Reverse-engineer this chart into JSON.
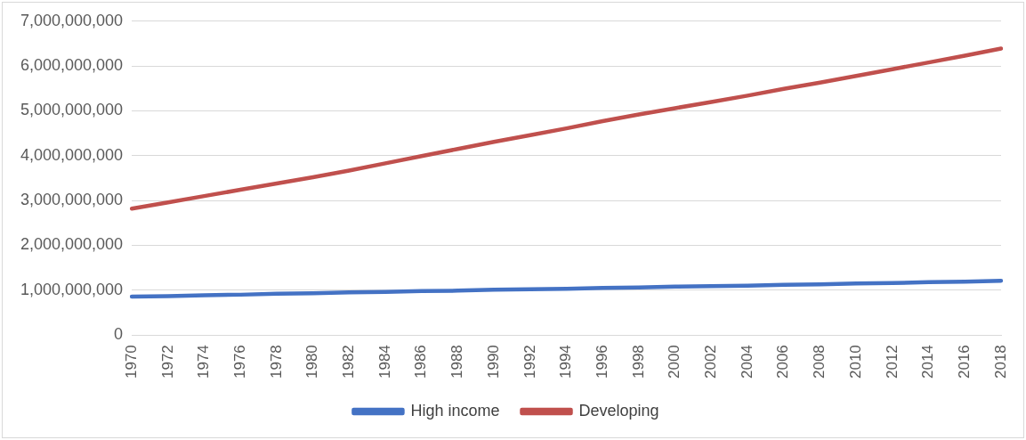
{
  "chart_data": {
    "type": "line",
    "categories": [
      "1970",
      "1972",
      "1974",
      "1976",
      "1978",
      "1980",
      "1982",
      "1984",
      "1986",
      "1988",
      "1990",
      "1992",
      "1994",
      "1996",
      "1998",
      "2000",
      "2002",
      "2004",
      "2006",
      "2008",
      "2010",
      "2012",
      "2014",
      "2016",
      "2018"
    ],
    "series": [
      {
        "name": "High income",
        "color": "#4472c4",
        "values": [
          860000000,
          870000000,
          890000000,
          900000000,
          920000000,
          930000000,
          950000000,
          960000000,
          980000000,
          990000000,
          1010000000,
          1020000000,
          1030000000,
          1050000000,
          1060000000,
          1080000000,
          1090000000,
          1100000000,
          1120000000,
          1130000000,
          1150000000,
          1160000000,
          1180000000,
          1190000000,
          1210000000
        ]
      },
      {
        "name": "Developing",
        "color": "#c0504d",
        "values": [
          2820000000,
          2960000000,
          3100000000,
          3240000000,
          3380000000,
          3520000000,
          3670000000,
          3830000000,
          3990000000,
          4150000000,
          4310000000,
          4460000000,
          4610000000,
          4770000000,
          4920000000,
          5060000000,
          5200000000,
          5340000000,
          5490000000,
          5630000000,
          5780000000,
          5930000000,
          6080000000,
          6230000000,
          6390000000
        ]
      }
    ],
    "ylim": [
      0,
      7000000000
    ],
    "yticks": [
      0,
      {
        "value": 1000000000,
        "label": "1,000,000,000"
      },
      {
        "value": 2000000000,
        "label": "2,000,000,000"
      },
      {
        "value": 3000000000,
        "label": "3,000,000,000"
      },
      {
        "value": 4000000000,
        "label": "4,000,000,000"
      },
      {
        "value": 5000000000,
        "label": "5,000,000,000"
      },
      {
        "value": 6000000000,
        "label": "6,000,000,000"
      },
      {
        "value": 7000000000,
        "label": "7,000,000,000"
      }
    ],
    "grid": "y",
    "legend": "bottom",
    "marker": "none",
    "line_style": "solid"
  }
}
